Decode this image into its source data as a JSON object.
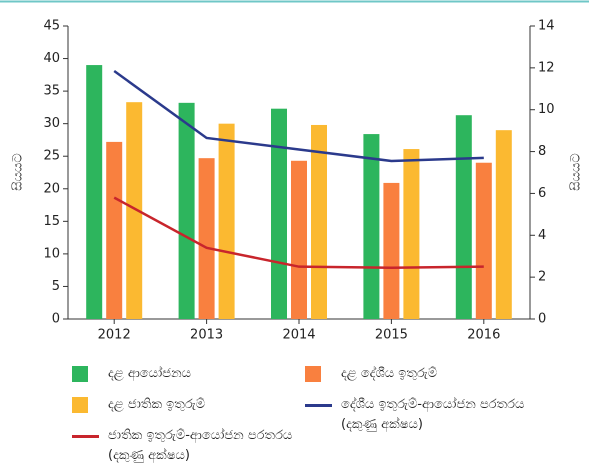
{
  "chart_data": {
    "type": "bar",
    "categories": [
      "2012",
      "2013",
      "2014",
      "2015",
      "2016"
    ],
    "y_label": "සියයට",
    "y2_label": "සියයට",
    "ylim": [
      0,
      45
    ],
    "yticks": [
      0,
      5,
      10,
      15,
      20,
      25,
      30,
      35,
      40,
      45
    ],
    "y2lim": [
      0,
      14
    ],
    "y2ticks": [
      0,
      2,
      4,
      6,
      8,
      10,
      12,
      14
    ],
    "series": [
      {
        "name": "දළ ආයෝජනය",
        "color": "#2db55d",
        "type": "bar",
        "values": [
          39.0,
          33.2,
          32.3,
          28.4,
          31.3
        ]
      },
      {
        "name": "දළ දේශීය ඉතුරුම්",
        "color": "#f9803f",
        "type": "bar",
        "values": [
          27.2,
          24.7,
          24.3,
          20.9,
          24.0
        ]
      },
      {
        "name": "දළ ජාතික ඉතුරුම්",
        "color": "#fbb931",
        "type": "bar",
        "values": [
          33.3,
          30.0,
          29.8,
          26.1,
          29.0
        ]
      },
      {
        "name": "දේශීය ඉතුරුම්-ආයෝජන පරතරය (දකුණු අක්ෂය)",
        "color": "#2b3a8c",
        "type": "line",
        "axis": "y2",
        "values": [
          11.85,
          8.65,
          8.1,
          7.55,
          7.7
        ]
      },
      {
        "name": "ජාතික ඉතුරුම්-ආයෝජන පරතරය (දකුණු අක්ෂය)",
        "color": "#c8252c",
        "type": "line",
        "axis": "y2",
        "values": [
          5.8,
          3.4,
          2.5,
          2.45,
          2.5
        ]
      }
    ]
  }
}
